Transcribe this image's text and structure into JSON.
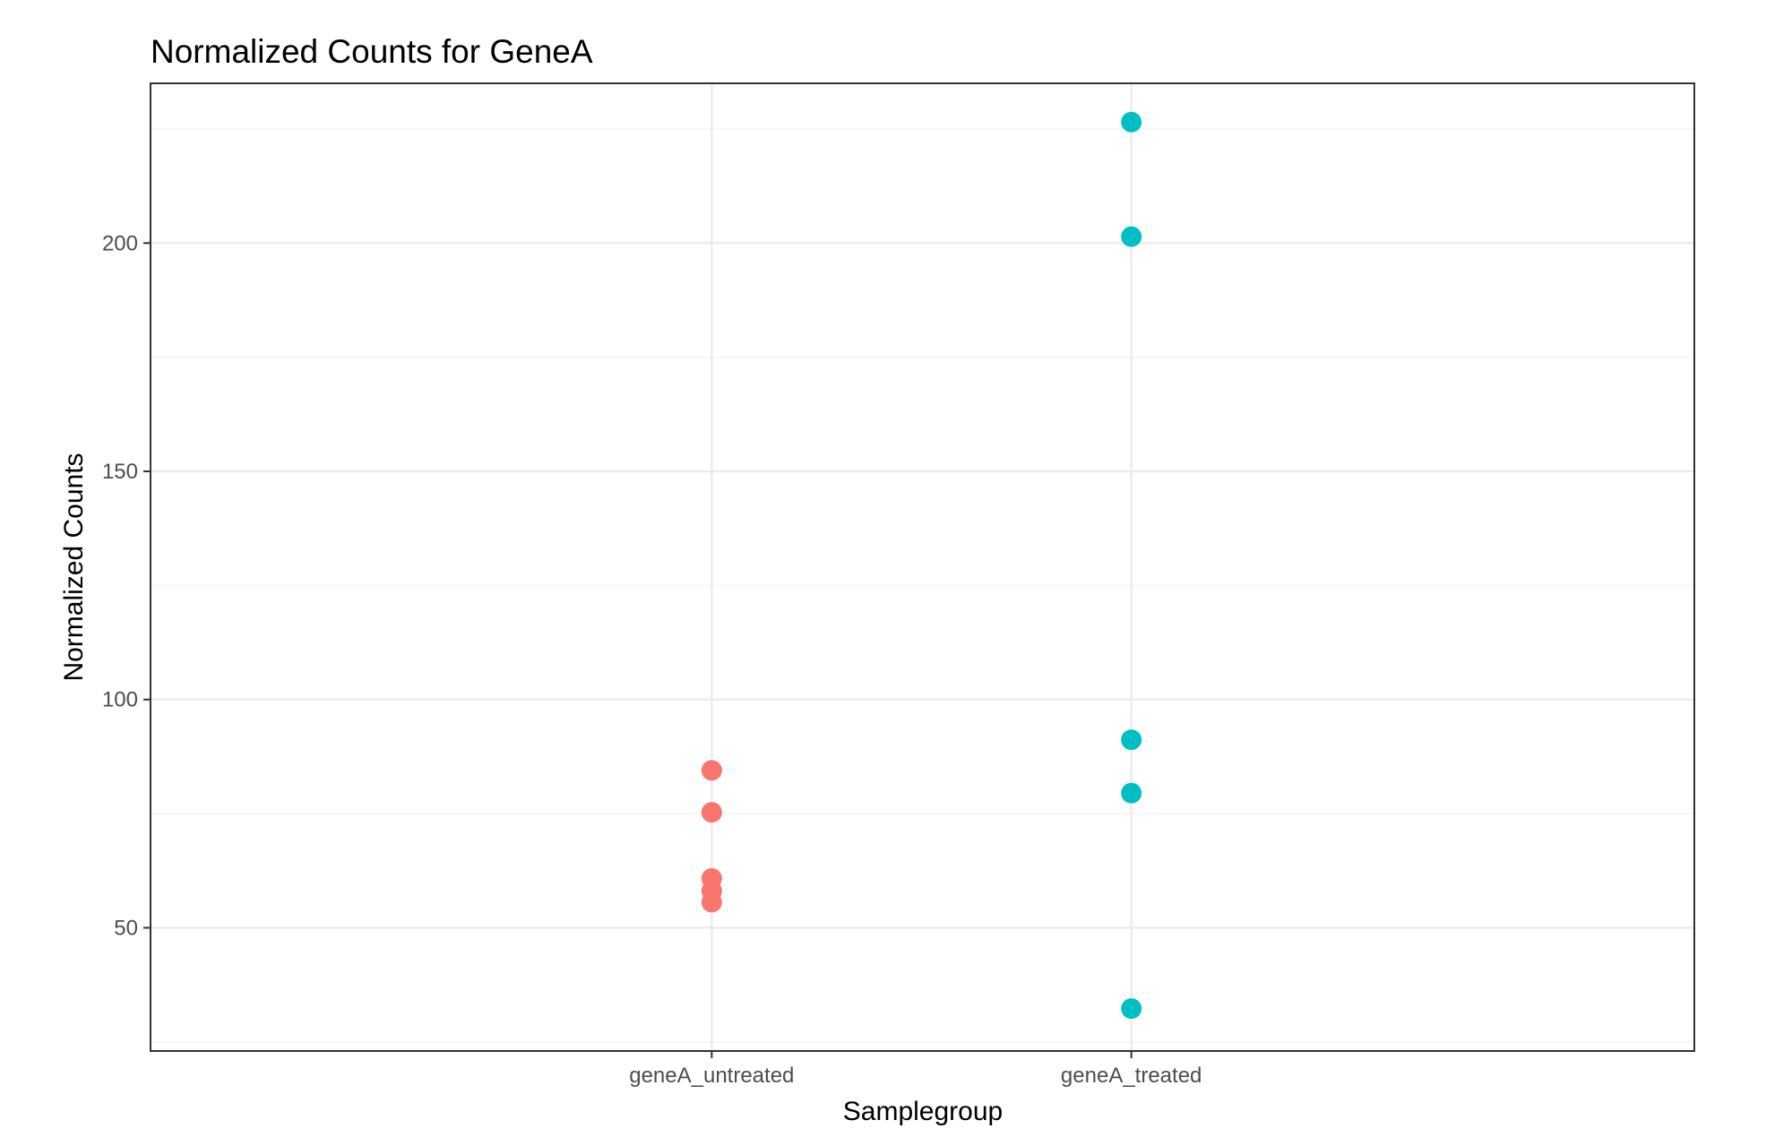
{
  "chart_data": {
    "type": "scatter",
    "title": "Normalized Counts for GeneA",
    "xlabel": "Samplegroup",
    "ylabel": "Normalized Counts",
    "categories": [
      "geneA_untreated",
      "geneA_treated"
    ],
    "ylim": [
      23,
      235
    ],
    "yticks": [
      50,
      100,
      150,
      200
    ],
    "grid": true,
    "series": [
      {
        "category": "geneA_untreated",
        "color": "#F8766D",
        "values": [
          84.5,
          75.3,
          60.8,
          58.1,
          55.6
        ]
      },
      {
        "category": "geneA_treated",
        "color": "#00BFC4",
        "values": [
          226.5,
          201.4,
          91.2,
          79.5,
          32.3
        ]
      }
    ]
  }
}
